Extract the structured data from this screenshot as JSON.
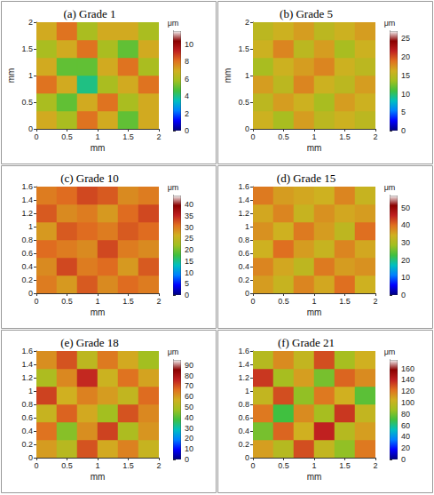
{
  "chart_data": [
    {
      "type": "heatmap",
      "title": "(a) Grade 1",
      "xlabel": "mm",
      "ylabel": "mm",
      "xlim": [
        0,
        2
      ],
      "xticks": [
        0,
        0.5,
        1,
        1.5,
        2
      ],
      "ylim": [
        0,
        2
      ],
      "yticks": [
        0,
        0.5,
        1,
        1.5,
        2
      ],
      "colorbar_title": "μm",
      "zlim": [
        0,
        11.5
      ],
      "zticks": [
        0,
        2,
        4,
        6,
        8,
        10
      ],
      "z": [
        [
          7,
          6,
          8,
          7,
          5,
          7
        ],
        [
          6,
          5,
          7,
          8,
          6,
          7
        ],
        [
          8,
          7,
          4,
          6,
          7,
          8
        ],
        [
          7,
          5,
          5,
          7,
          8,
          6
        ],
        [
          6,
          7,
          8,
          6,
          5,
          7
        ],
        [
          7,
          8,
          6,
          7,
          7,
          6
        ]
      ]
    },
    {
      "type": "heatmap",
      "title": "(b) Grade 5",
      "xlabel": "mm",
      "ylabel": "mm",
      "xlim": [
        0,
        2
      ],
      "xticks": [
        0,
        0.5,
        1,
        1.5,
        2
      ],
      "ylim": [
        0,
        2
      ],
      "yticks": [
        0,
        0.5,
        1,
        1.5,
        2
      ],
      "colorbar_title": "μm",
      "zlim": [
        0,
        27
      ],
      "zticks": [
        0,
        5,
        10,
        15,
        20,
        25
      ],
      "z": [
        [
          16,
          14,
          17,
          15,
          16,
          15
        ],
        [
          15,
          17,
          16,
          14,
          17,
          16
        ],
        [
          17,
          15,
          18,
          16,
          15,
          17
        ],
        [
          14,
          16,
          17,
          18,
          16,
          15
        ],
        [
          16,
          18,
          15,
          17,
          14,
          16
        ],
        [
          15,
          16,
          17,
          15,
          16,
          17
        ]
      ]
    },
    {
      "type": "heatmap",
      "title": "(c) Grade 10",
      "xlabel": "mm",
      "xlim": [
        0,
        2
      ],
      "xticks": [
        0,
        0.5,
        1,
        1.5,
        2
      ],
      "ylim": [
        0,
        1.6
      ],
      "yticks": [
        0,
        0.2,
        0.4,
        0.6,
        0.8,
        1,
        1.2,
        1.4,
        1.6
      ],
      "colorbar_title": "μm",
      "zlim": [
        0,
        44
      ],
      "zticks": [
        0,
        5,
        10,
        15,
        20,
        25,
        30,
        35,
        40
      ],
      "z": [
        [
          30,
          28,
          32,
          29,
          31,
          30
        ],
        [
          29,
          33,
          30,
          31,
          28,
          32
        ],
        [
          31,
          30,
          29,
          33,
          30,
          29
        ],
        [
          28,
          32,
          31,
          30,
          32,
          31
        ],
        [
          32,
          29,
          30,
          28,
          31,
          33
        ],
        [
          30,
          31,
          33,
          32,
          29,
          30
        ]
      ]
    },
    {
      "type": "heatmap",
      "title": "(d) Grade 15",
      "xlabel": "mm",
      "xlim": [
        0,
        2
      ],
      "xticks": [
        0,
        0.5,
        1,
        1.5,
        2
      ],
      "ylim": [
        0,
        1.6
      ],
      "yticks": [
        0,
        0.2,
        0.4,
        0.6,
        0.8,
        1,
        1.2,
        1.4,
        1.6
      ],
      "colorbar_title": "μm",
      "zlim": [
        0,
        57
      ],
      "zticks": [
        0,
        10,
        20,
        30,
        40,
        50
      ],
      "z": [
        [
          36,
          33,
          38,
          35,
          40,
          34
        ],
        [
          38,
          35,
          32,
          39,
          36,
          37
        ],
        [
          34,
          40,
          36,
          33,
          38,
          35
        ],
        [
          37,
          34,
          39,
          36,
          32,
          40
        ],
        [
          35,
          38,
          33,
          37,
          35,
          36
        ],
        [
          39,
          36,
          35,
          34,
          38,
          33
        ]
      ]
    },
    {
      "type": "heatmap",
      "title": "(e) Grade 18",
      "xlabel": "mm",
      "xlim": [
        0,
        2
      ],
      "xticks": [
        0,
        0.5,
        1,
        1.5,
        2
      ],
      "ylim": [
        0,
        1.6
      ],
      "yticks": [
        0,
        0.2,
        0.4,
        0.6,
        0.8,
        1,
        1.2,
        1.4,
        1.6
      ],
      "colorbar_title": "μm",
      "zlim": [
        0,
        95
      ],
      "zticks": [
        0,
        10,
        20,
        30,
        40,
        50,
        60,
        70,
        80,
        90
      ],
      "z": [
        [
          60,
          52,
          70,
          58,
          64,
          55
        ],
        [
          66,
          45,
          62,
          72,
          50,
          61
        ],
        [
          55,
          68,
          58,
          48,
          70,
          63
        ],
        [
          72,
          57,
          64,
          60,
          54,
          67
        ],
        [
          50,
          63,
          75,
          56,
          66,
          59
        ],
        [
          62,
          70,
          53,
          65,
          58,
          48
        ]
      ]
    },
    {
      "type": "heatmap",
      "title": "(f) Grade 21",
      "xlabel": "mm",
      "xlim": [
        0,
        2
      ],
      "xticks": [
        0,
        0.5,
        1,
        1.5,
        2
      ],
      "ylim": [
        0,
        1.6
      ],
      "yticks": [
        0,
        0.2,
        0.4,
        0.6,
        0.8,
        1,
        1.2,
        1.4,
        1.6
      ],
      "colorbar_title": "μm",
      "zlim": [
        0,
        175
      ],
      "zticks": [
        0,
        20,
        40,
        60,
        80,
        100,
        120,
        140,
        160
      ],
      "z": [
        [
          110,
          95,
          130,
          100,
          85,
          120
        ],
        [
          80,
          125,
          105,
          140,
          95,
          110
        ],
        [
          120,
          70,
          115,
          90,
          135,
          100
        ],
        [
          100,
          130,
          85,
          120,
          105,
          75
        ],
        [
          135,
          90,
          110,
          80,
          125,
          115
        ],
        [
          95,
          115,
          100,
          130,
          90,
          105
        ]
      ]
    }
  ]
}
